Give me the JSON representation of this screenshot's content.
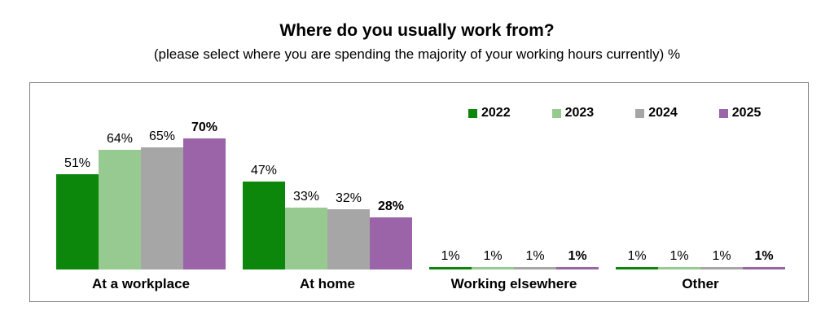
{
  "header": {
    "title": "Where do you usually work from?",
    "subtitle": "(please select where you are spending the majority of your working hours currently) %"
  },
  "chart_data": {
    "type": "bar",
    "title": "Where do you usually work from?",
    "subtitle": "(please select where you are spending the majority of your working hours currently) %",
    "unit": "%",
    "categories": [
      "At a workplace",
      "At home",
      "Working elsewhere",
      "Other"
    ],
    "series": [
      {
        "name": "2022",
        "color": "#0c870c",
        "bold_labels": false,
        "values": [
          51,
          47,
          1,
          1
        ]
      },
      {
        "name": "2023",
        "color": "#96ca90",
        "bold_labels": false,
        "values": [
          64,
          33,
          1,
          1
        ]
      },
      {
        "name": "2024",
        "color": "#a6a6a6",
        "bold_labels": false,
        "values": [
          65,
          32,
          1,
          1
        ]
      },
      {
        "name": "2025",
        "color": "#9b64a8",
        "bold_labels": true,
        "values": [
          70,
          28,
          1,
          1
        ]
      }
    ],
    "value_labels": true,
    "ylim": [
      0,
      100
    ],
    "grid": false,
    "legend_position": "top-right",
    "plot_border_color": "#808080"
  }
}
